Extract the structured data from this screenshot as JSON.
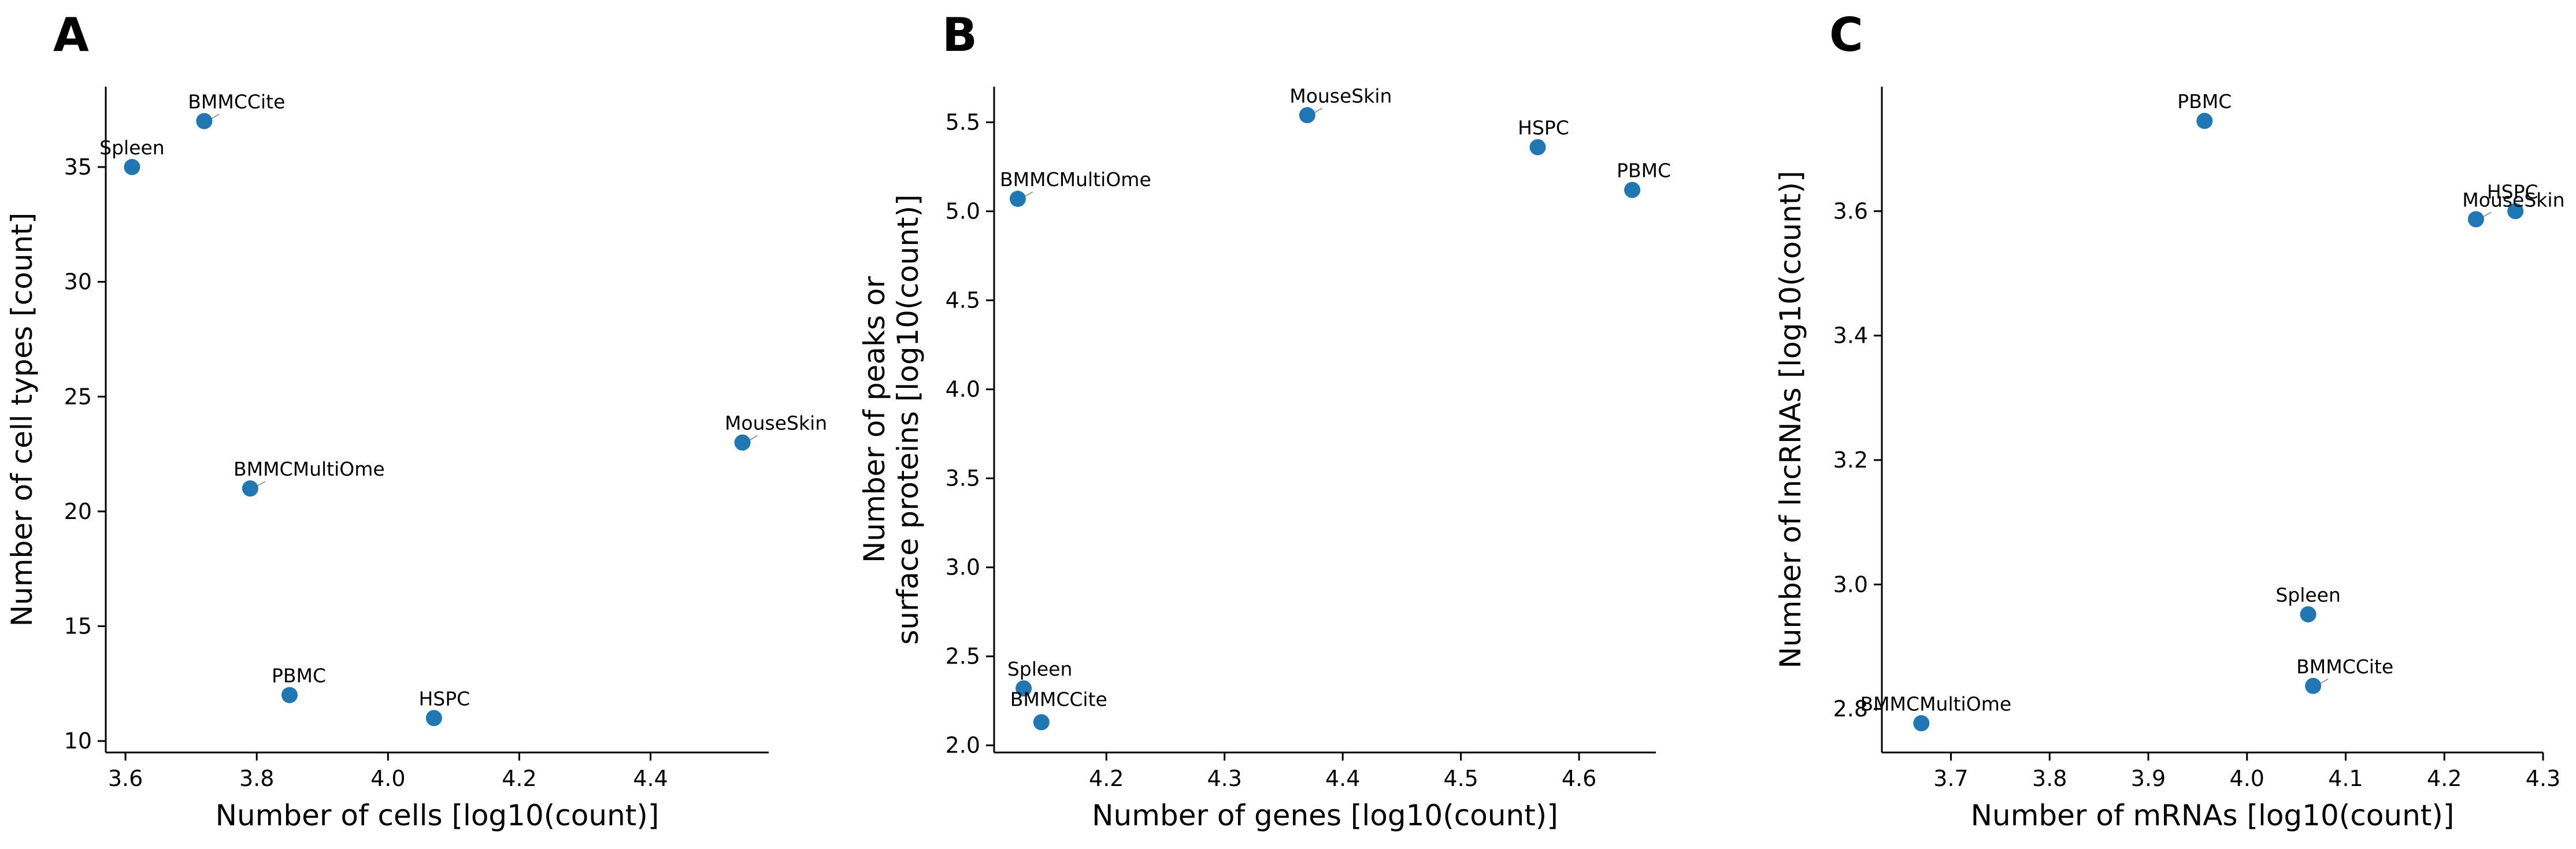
{
  "chart_data": [
    {
      "type": "scatter",
      "panel": "A",
      "xlabel": "Number of cells [log10(count)]",
      "ylabel": "Number of cell types [count]",
      "xlim": [
        3.57,
        4.58
      ],
      "ylim": [
        9.5,
        38.5
      ],
      "xticks": [
        "3.6",
        "3.8",
        "4.0",
        "4.2",
        "4.4"
      ],
      "xtick_values": [
        3.6,
        3.8,
        4.0,
        4.2,
        4.4
      ],
      "yticks": [
        "10",
        "15",
        "20",
        "25",
        "30",
        "35"
      ],
      "ytick_values": [
        10,
        15,
        20,
        25,
        30,
        35
      ],
      "color": "#1f77b4",
      "points": [
        {
          "label": "Spleen",
          "x": 3.61,
          "y": 35
        },
        {
          "label": "BMMCCite",
          "x": 3.72,
          "y": 37
        },
        {
          "label": "BMMCMultiOme",
          "x": 3.79,
          "y": 21
        },
        {
          "label": "PBMC",
          "x": 3.85,
          "y": 12
        },
        {
          "label": "HSPC",
          "x": 4.07,
          "y": 11
        },
        {
          "label": "MouseSkin",
          "x": 4.54,
          "y": 23
        }
      ]
    },
    {
      "type": "scatter",
      "panel": "B",
      "xlabel": "Number of genes [log10(count)]",
      "ylabel": [
        "Number of peaks or",
        "surface proteins [log10(count)]"
      ],
      "xlim": [
        4.105,
        4.665
      ],
      "ylim": [
        1.96,
        5.7
      ],
      "xticks": [
        "4.2",
        "4.3",
        "4.4",
        "4.5",
        "4.6"
      ],
      "xtick_values": [
        4.2,
        4.3,
        4.4,
        4.5,
        4.6
      ],
      "yticks": [
        "2.0",
        "2.5",
        "3.0",
        "3.5",
        "4.0",
        "4.5",
        "5.0",
        "5.5"
      ],
      "ytick_values": [
        2.0,
        2.5,
        3.0,
        3.5,
        4.0,
        4.5,
        5.0,
        5.5
      ],
      "color": "#1f77b4",
      "points": [
        {
          "label": "BMMCMultiOme",
          "x": 4.125,
          "y": 5.07
        },
        {
          "label": "MouseSkin",
          "x": 4.37,
          "y": 5.54
        },
        {
          "label": "HSPC",
          "x": 4.565,
          "y": 5.36
        },
        {
          "label": "PBMC",
          "x": 4.645,
          "y": 5.12
        },
        {
          "label": "Spleen",
          "x": 4.13,
          "y": 2.32
        },
        {
          "label": "BMMCCite",
          "x": 4.145,
          "y": 2.13
        }
      ]
    },
    {
      "type": "scatter",
      "panel": "C",
      "xlabel": "Number of mRNAs [log10(count)]",
      "ylabel": "Number of lncRNAs [log10(count)]",
      "xlim": [
        3.63,
        4.3
      ],
      "ylim": [
        2.73,
        3.8
      ],
      "xticks": [
        "3.7",
        "3.8",
        "3.9",
        "4.0",
        "4.1",
        "4.2",
        "4.3"
      ],
      "xtick_values": [
        3.7,
        3.8,
        3.9,
        4.0,
        4.1,
        4.2,
        4.3
      ],
      "yticks": [
        "2.8",
        "3.0",
        "3.2",
        "3.4",
        "3.6"
      ],
      "ytick_values": [
        2.8,
        3.0,
        3.2,
        3.4,
        3.6
      ],
      "color": "#1f77b4",
      "points": [
        {
          "label": "PBMC",
          "x": 3.957,
          "y": 3.745
        },
        {
          "label": "HSPC",
          "x": 4.272,
          "y": 3.6
        },
        {
          "label": "MouseSkin",
          "x": 4.232,
          "y": 3.587
        },
        {
          "label": "Spleen",
          "x": 4.062,
          "y": 2.952
        },
        {
          "label": "BMMCCite",
          "x": 4.067,
          "y": 2.837
        },
        {
          "label": "BMMCMultiOme",
          "x": 3.67,
          "y": 2.777
        }
      ]
    }
  ]
}
